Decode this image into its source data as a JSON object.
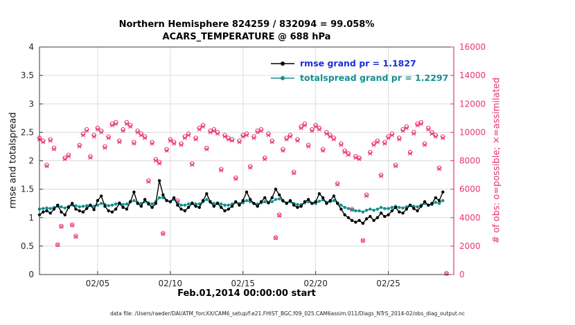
{
  "footer": {
    "caption": "data file: /Users/raeder/DAI/ATM_forcXX/CAM6_setup/f.e21.FHIST_BGC.f09_025.CAM6assim.011/Diags_NTrS_2014-02/obs_diag_output.nc"
  },
  "chart_data": {
    "type": "line+scatter",
    "title": "Northern Hemisphere 824259 / 832094 = 99.058%",
    "subtitle": "ACARS_TEMPERATURE @ 688 hPa",
    "obs_possible_total": 832094,
    "obs_assimilated_total": 824259,
    "assimilated_percent": "99.058%",
    "legend": {
      "position": "top-center-inside",
      "entries": [
        {
          "label": "rmse grand pr = 1.1827",
          "text_color": "#1a2fd8",
          "line_color": "#000000"
        },
        {
          "label": "totalspread grand pr = 1.2297",
          "text_color": "#12908e",
          "line_color": "#12908e"
        }
      ]
    },
    "x_axis": {
      "label": "Feb.01,2014 00:00:00 start",
      "unit": "days since 2014-02-01 00:00",
      "lim": [
        0,
        28.5
      ],
      "ticks": [
        {
          "t": 4,
          "label": "02/05"
        },
        {
          "t": 9,
          "label": "02/10"
        },
        {
          "t": 14,
          "label": "02/15"
        },
        {
          "t": 19,
          "label": "02/20"
        },
        {
          "t": 24,
          "label": "02/25"
        }
      ]
    },
    "y_left": {
      "label": "rmse and totalspread",
      "lim": [
        0,
        4
      ],
      "ticks": [
        0,
        0.5,
        1,
        1.5,
        2,
        2.5,
        3,
        3.5,
        4
      ],
      "tick_labels": [
        "0",
        "0.5",
        "1",
        "1.5",
        "2",
        "2.5",
        "3",
        "3.5",
        "4"
      ],
      "color": "#262626"
    },
    "y_right": {
      "label": "# of obs: o=possible; ×=assimilated",
      "lim": [
        0,
        16000
      ],
      "ticks": [
        0,
        2000,
        4000,
        6000,
        8000,
        10000,
        12000,
        14000,
        16000
      ],
      "tick_labels": [
        "0",
        "2000",
        "4000",
        "6000",
        "8000",
        "10000",
        "12000",
        "14000",
        "16000"
      ],
      "color": "#e8356b"
    },
    "t_start": 0,
    "t_step_days": 0.25,
    "grid": true,
    "series": [
      {
        "name": "rmse",
        "axis": "left",
        "color": "#000000",
        "marker": "filled-circle",
        "grand_mean": 1.1827,
        "values": [
          1.05,
          1.1,
          1.12,
          1.08,
          1.15,
          1.22,
          1.1,
          1.05,
          1.18,
          1.25,
          1.15,
          1.12,
          1.1,
          1.16,
          1.22,
          1.14,
          1.3,
          1.38,
          1.2,
          1.12,
          1.1,
          1.15,
          1.25,
          1.18,
          1.15,
          1.28,
          1.45,
          1.25,
          1.2,
          1.32,
          1.24,
          1.18,
          1.25,
          1.65,
          1.4,
          1.3,
          1.28,
          1.35,
          1.22,
          1.15,
          1.12,
          1.18,
          1.25,
          1.2,
          1.18,
          1.3,
          1.42,
          1.28,
          1.2,
          1.25,
          1.18,
          1.12,
          1.15,
          1.2,
          1.28,
          1.22,
          1.3,
          1.45,
          1.32,
          1.25,
          1.2,
          1.28,
          1.35,
          1.26,
          1.35,
          1.5,
          1.4,
          1.3,
          1.25,
          1.3,
          1.22,
          1.18,
          1.2,
          1.28,
          1.32,
          1.25,
          1.28,
          1.42,
          1.35,
          1.25,
          1.3,
          1.38,
          1.25,
          1.15,
          1.05,
          1.0,
          0.95,
          0.92,
          0.95,
          0.9,
          0.98,
          1.02,
          0.95,
          1.0,
          1.08,
          1.02,
          1.05,
          1.12,
          1.18,
          1.1,
          1.08,
          1.15,
          1.22,
          1.16,
          1.12,
          1.2,
          1.28,
          1.22,
          1.25,
          1.35,
          1.3,
          1.45
        ]
      },
      {
        "name": "totalspread",
        "axis": "left",
        "color": "#12908e",
        "marker": "filled-circle",
        "grand_mean": 1.2297,
        "values": [
          1.15,
          1.16,
          1.17,
          1.16,
          1.18,
          1.2,
          1.19,
          1.17,
          1.2,
          1.22,
          1.21,
          1.19,
          1.2,
          1.21,
          1.22,
          1.2,
          1.22,
          1.25,
          1.23,
          1.21,
          1.22,
          1.24,
          1.26,
          1.23,
          1.24,
          1.28,
          1.3,
          1.26,
          1.25,
          1.28,
          1.26,
          1.24,
          1.28,
          1.35,
          1.35,
          1.3,
          1.28,
          1.32,
          1.26,
          1.22,
          1.22,
          1.24,
          1.26,
          1.24,
          1.24,
          1.28,
          1.32,
          1.27,
          1.25,
          1.26,
          1.24,
          1.22,
          1.22,
          1.24,
          1.27,
          1.25,
          1.26,
          1.3,
          1.28,
          1.25,
          1.24,
          1.26,
          1.28,
          1.26,
          1.28,
          1.32,
          1.33,
          1.29,
          1.26,
          1.28,
          1.25,
          1.23,
          1.23,
          1.26,
          1.28,
          1.25,
          1.25,
          1.29,
          1.31,
          1.27,
          1.28,
          1.3,
          1.26,
          1.22,
          1.18,
          1.16,
          1.14,
          1.12,
          1.12,
          1.1,
          1.13,
          1.15,
          1.13,
          1.15,
          1.18,
          1.16,
          1.16,
          1.18,
          1.2,
          1.18,
          1.17,
          1.19,
          1.22,
          1.2,
          1.19,
          1.22,
          1.25,
          1.22,
          1.23,
          1.27,
          1.25,
          1.3
        ]
      },
      {
        "name": "obs-possible",
        "axis": "right",
        "color": "#e8356b",
        "marker": "open-circle",
        "values": [
          9600,
          9400,
          7700,
          9500,
          8900,
          2100,
          3400,
          8200,
          8400,
          3500,
          2700,
          9100,
          9900,
          10200,
          8300,
          9800,
          10300,
          10100,
          9000,
          9700,
          10600,
          10700,
          9400,
          10200,
          10700,
          10500,
          9300,
          10100,
          9900,
          9700,
          6600,
          9300,
          8100,
          7900,
          2900,
          8800,
          9500,
          9300,
          5200,
          9200,
          9700,
          9900,
          7800,
          9600,
          10300,
          10500,
          8900,
          10100,
          10200,
          10000,
          7400,
          9800,
          9600,
          9500,
          6800,
          9400,
          9800,
          9900,
          7600,
          9700,
          10100,
          10200,
          8200,
          9900,
          9400,
          2600,
          4200,
          8800,
          9600,
          9800,
          7200,
          9500,
          10400,
          10600,
          9100,
          10200,
          10500,
          10300,
          8800,
          10000,
          9800,
          9600,
          6400,
          9200,
          8700,
          8500,
          4600,
          8300,
          8200,
          2400,
          5600,
          8600,
          9200,
          9400,
          7000,
          9300,
          9700,
          9900,
          7700,
          9600,
          10200,
          10400,
          8600,
          10000,
          10600,
          10700,
          9200,
          10300,
          10000,
          9800,
          7500,
          9700,
          80
        ]
      },
      {
        "name": "obs-assimilated",
        "axis": "right",
        "color": "#e8356b",
        "marker": "x-cross",
        "values": [
          9500,
          9310,
          7620,
          9410,
          8810,
          2080,
          3370,
          8120,
          8320,
          3470,
          2670,
          9010,
          9800,
          10100,
          8220,
          9700,
          10200,
          10000,
          8910,
          9600,
          10490,
          10590,
          9310,
          10100,
          10590,
          10400,
          9210,
          10000,
          9800,
          9600,
          6530,
          9210,
          8020,
          7820,
          2870,
          8710,
          9410,
          9210,
          5150,
          9110,
          9600,
          9800,
          7720,
          9500,
          10200,
          10400,
          8810,
          10000,
          10100,
          9900,
          7330,
          9700,
          9500,
          9410,
          6730,
          9310,
          9700,
          9800,
          7520,
          9600,
          10000,
          10100,
          8120,
          9800,
          9310,
          2570,
          4160,
          8710,
          9500,
          9700,
          7130,
          9410,
          10300,
          10490,
          9010,
          10100,
          10400,
          10200,
          8710,
          9900,
          9700,
          9500,
          6340,
          9110,
          8610,
          8420,
          4550,
          8220,
          8120,
          2380,
          5540,
          8510,
          9110,
          9310,
          6930,
          9210,
          9600,
          9800,
          7620,
          9500,
          10100,
          10300,
          8510,
          9900,
          10490,
          10590,
          9110,
          10200,
          9900,
          9700,
          7430,
          9600,
          60
        ]
      }
    ]
  }
}
